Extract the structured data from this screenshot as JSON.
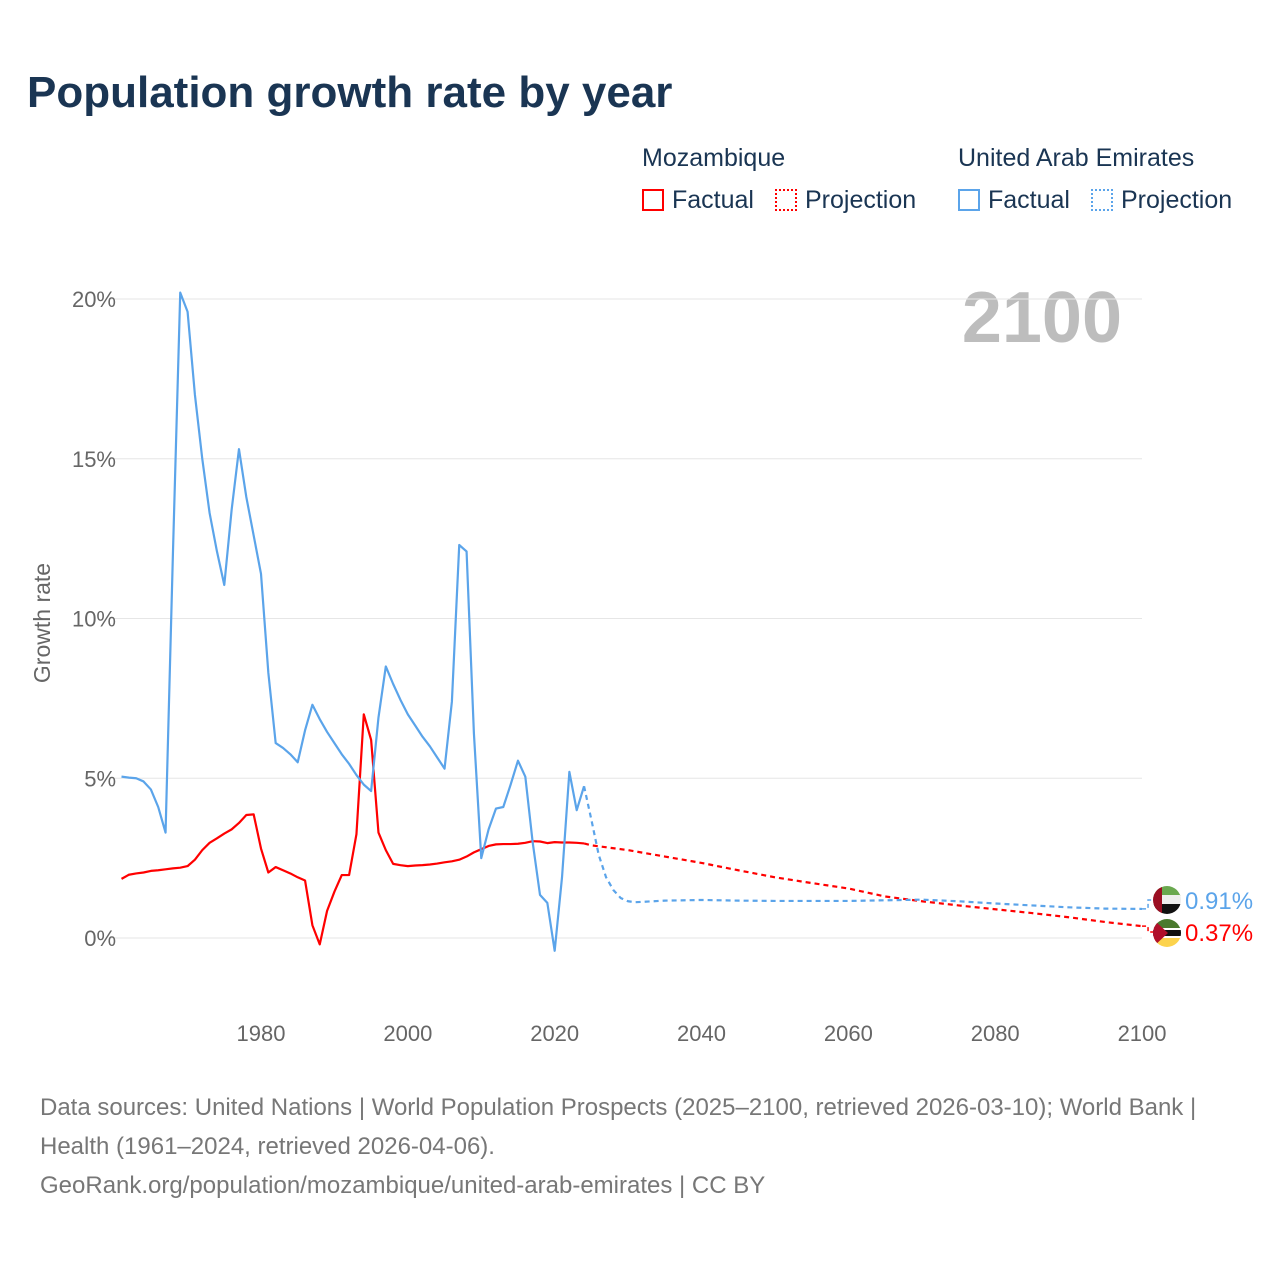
{
  "title": "Population growth rate by year",
  "legend": {
    "groups": [
      {
        "name": "Mozambique",
        "color": "#ff0000",
        "factual": "Factual",
        "projection": "Projection"
      },
      {
        "name": "United Arab Emirates",
        "color": "#5ba4ea",
        "factual": "Factual",
        "projection": "Projection"
      }
    ]
  },
  "year_label": "2100",
  "footer": {
    "sources": "Data sources: United Nations | World Population Prospects (2025–2100, retrieved 2026-03-10); World Bank | Health (1961–2024, retrieved 2026-04-06).",
    "link": "GeoRank.org/population/mozambique/united-arab-emirates | CC BY"
  },
  "chart_data": {
    "type": "line",
    "title": "Population growth rate by year",
    "ylabel": "Growth rate",
    "xlabel": "",
    "xlim": [
      1961,
      2100
    ],
    "ylim": [
      -2,
      22
    ],
    "x_ticks": [
      1980,
      2000,
      2020,
      2040,
      2060,
      2080,
      2100
    ],
    "y_ticks": [
      0,
      5,
      10,
      15,
      20
    ],
    "y_tick_labels": [
      "0%",
      "5%",
      "10%",
      "15%",
      "20%"
    ],
    "grid": true,
    "series": [
      {
        "name": "Mozambique",
        "color": "#ff0000",
        "end_label": "0.37%",
        "factual": {
          "x_start": 1961,
          "values": [
            1.85,
            1.98,
            2.02,
            2.05,
            2.1,
            2.12,
            2.15,
            2.18,
            2.2,
            2.25,
            2.45,
            2.75,
            2.98,
            3.12,
            3.27,
            3.4,
            3.6,
            3.85,
            3.87,
            2.8,
            2.05,
            2.22,
            2.12,
            2.02,
            1.9,
            1.8,
            0.4,
            -0.2,
            0.85,
            1.45,
            1.97,
            1.97,
            3.25,
            7.0,
            6.2,
            3.3,
            2.75,
            2.32,
            2.28,
            2.25,
            2.27,
            2.28,
            2.3,
            2.33,
            2.37,
            2.4,
            2.45,
            2.55,
            2.68,
            2.78,
            2.88,
            2.93,
            2.94,
            2.94,
            2.95,
            2.98,
            3.03,
            3.02,
            2.97,
            3.0,
            2.99,
            2.99,
            2.98,
            2.96
          ]
        },
        "projection": {
          "x": [
            2024,
            2025,
            2030,
            2035,
            2040,
            2045,
            2050,
            2055,
            2060,
            2065,
            2070,
            2075,
            2080,
            2085,
            2090,
            2095,
            2100
          ],
          "values": [
            2.96,
            2.9,
            2.75,
            2.55,
            2.35,
            2.12,
            1.9,
            1.72,
            1.55,
            1.3,
            1.15,
            1.02,
            0.9,
            0.78,
            0.65,
            0.5,
            0.37
          ]
        }
      },
      {
        "name": "United Arab Emirates",
        "color": "#5ba4ea",
        "end_label": "0.91%",
        "factual": {
          "x_start": 1961,
          "values": [
            5.05,
            5.02,
            5.0,
            4.9,
            4.65,
            4.1,
            3.3,
            12.0,
            20.2,
            19.6,
            17.0,
            15.0,
            13.3,
            12.1,
            11.05,
            13.4,
            15.3,
            13.8,
            12.6,
            11.4,
            8.3,
            6.1,
            5.95,
            5.75,
            5.5,
            6.5,
            7.3,
            6.85,
            6.45,
            6.1,
            5.75,
            5.45,
            5.1,
            4.8,
            4.6,
            6.9,
            8.5,
            7.95,
            7.45,
            7.0,
            6.65,
            6.3,
            6.0,
            5.65,
            5.3,
            7.4,
            12.3,
            12.1,
            6.4,
            2.5,
            3.4,
            4.05,
            4.1,
            4.8,
            5.55,
            5.05,
            3.0,
            1.35,
            1.1,
            -0.4,
            1.9,
            5.2,
            4.0,
            4.75
          ]
        },
        "projection": {
          "x": [
            2024,
            2025,
            2026,
            2027,
            2028,
            2029,
            2030,
            2031,
            2035,
            2040,
            2045,
            2050,
            2055,
            2060,
            2065,
            2070,
            2075,
            2080,
            2085,
            2090,
            2095,
            2100
          ],
          "values": [
            4.75,
            3.7,
            2.6,
            1.9,
            1.5,
            1.25,
            1.15,
            1.12,
            1.17,
            1.19,
            1.17,
            1.16,
            1.16,
            1.16,
            1.18,
            1.2,
            1.15,
            1.08,
            1.02,
            0.96,
            0.92,
            0.91
          ]
        }
      }
    ]
  }
}
